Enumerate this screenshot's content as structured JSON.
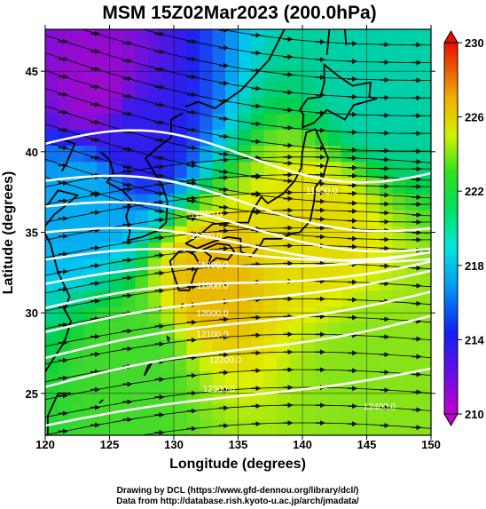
{
  "chart_data": {
    "type": "heatmap",
    "title": "MSM 15Z02Mar2023 (200.0hPa)",
    "xlabel": "Longitude (degrees)",
    "ylabel": "Latitude  (degrees)",
    "xlim": [
      120,
      150
    ],
    "ylim": [
      22.4,
      47.6
    ],
    "xticks": [
      120,
      125,
      130,
      135,
      140,
      145,
      150
    ],
    "yticks": [
      25,
      30,
      35,
      40,
      45
    ],
    "colorbar": {
      "min": 210,
      "max": 230,
      "ticks": [
        210,
        214,
        218,
        222,
        226,
        230
      ],
      "colors": [
        "#d000c0",
        "#2020f0",
        "#00d0f0",
        "#00d040",
        "#e0f000",
        "#f08000",
        "#e82000"
      ]
    },
    "temperature_regions": [
      {
        "lon": 124,
        "lat": 44,
        "value": 211
      },
      {
        "lon": 127,
        "lat": 41,
        "value": 213
      },
      {
        "lon": 123,
        "lat": 37,
        "value": 216
      },
      {
        "lon": 133,
        "lat": 32,
        "value": 225
      },
      {
        "lon": 141,
        "lat": 35,
        "value": 224
      },
      {
        "lon": 146,
        "lat": 44,
        "value": 218
      },
      {
        "lon": 127,
        "lat": 27,
        "value": 221
      },
      {
        "lon": 145,
        "lat": 26,
        "value": 222
      }
    ],
    "contour_labels": [
      {
        "label": "11500.0",
        "lon": 141.5,
        "lat": 37.4
      },
      {
        "label": "11600.0",
        "lon": 132.5,
        "lat": 35.9
      },
      {
        "label": "11700.0",
        "lon": 132.5,
        "lat": 34.6
      },
      {
        "label": "11800.0",
        "lon": 133.0,
        "lat": 32.8
      },
      {
        "label": "11900.0",
        "lon": 133.0,
        "lat": 31.5
      },
      {
        "label": "12000.0",
        "lon": 133.0,
        "lat": 29.8
      },
      {
        "label": "12100.0",
        "lon": 133.0,
        "lat": 28.5
      },
      {
        "label": "12200.0",
        "lon": 134.0,
        "lat": 26.9
      },
      {
        "label": "12300.0",
        "lon": 133.5,
        "lat": 25.1
      },
      {
        "label": "12400.0",
        "lon": 146.0,
        "lat": 24.0
      }
    ]
  },
  "credits": {
    "line1": "Drawing by DCL (https://www.gfd-dennou.org/library/dcl/)",
    "line2": "Data from http://database.rish.kyoto-u.ac.jp/arch/jmadata/"
  }
}
